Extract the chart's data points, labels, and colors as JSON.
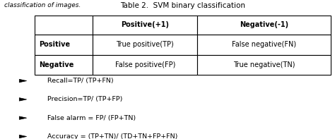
{
  "title": "Table 2.  SVM binary classification",
  "header_row": [
    "",
    "Positive(+1)",
    "Negative(-1)"
  ],
  "rows": [
    [
      "Positive",
      "True positive(TP)",
      "False negative(FN)"
    ],
    [
      "Negative",
      "False positive(FP)",
      "True negative(TN)"
    ]
  ],
  "bullets": [
    "Recall=TP/ (TP+FN)",
    "Precision=TP/ (TP+FP)",
    "False alarm = FP/ (FP+TN)",
    "Accuracy = (TP+TN)/ (TD+TN+FP+FN)"
  ],
  "top_label": "classification of images.",
  "bg_color": "#ffffff",
  "border_color": "#000000"
}
